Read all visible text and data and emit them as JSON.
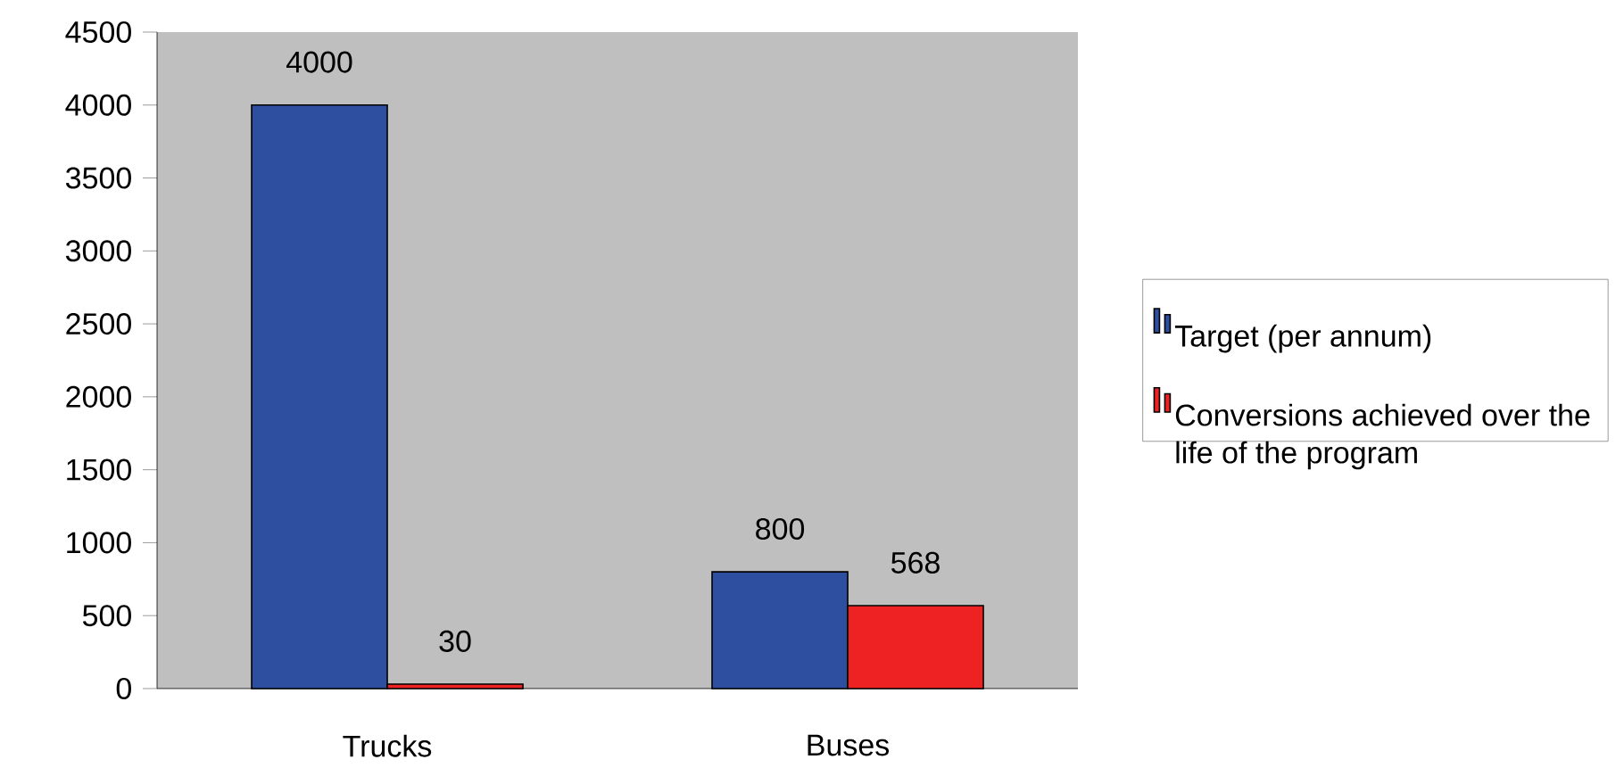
{
  "chart_data": {
    "type": "bar",
    "categories": [
      "Trucks",
      "Buses"
    ],
    "series": [
      {
        "name": "Target (per annum)",
        "color": "#2e4fa0",
        "values": [
          4000,
          800
        ]
      },
      {
        "name": "Conversions achieved over the life of the program",
        "color": "#ee2222",
        "values": [
          30,
          568
        ]
      }
    ],
    "ylim": [
      0,
      4500
    ],
    "yticks": [
      0,
      500,
      1000,
      1500,
      2000,
      2500,
      3000,
      3500,
      4000,
      4500
    ],
    "data_labels": true,
    "legend": "right"
  }
}
